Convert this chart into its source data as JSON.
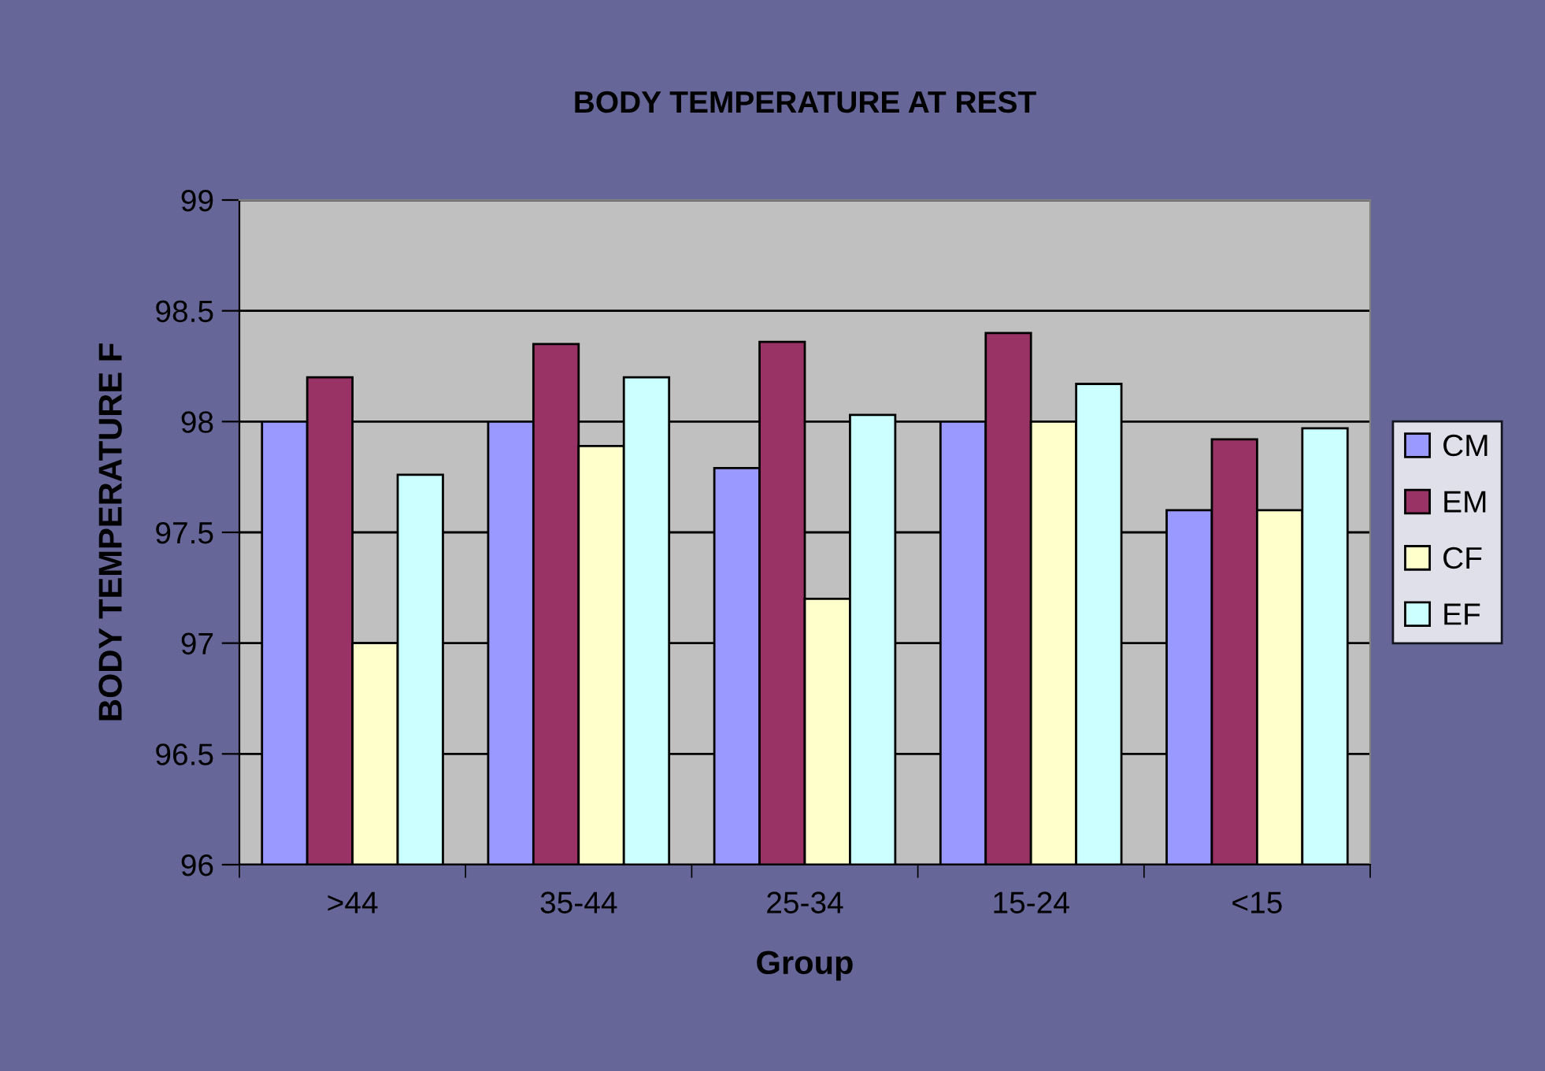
{
  "chart_data": {
    "type": "bar",
    "title": "BODY TEMPERATURE AT REST",
    "xlabel": "Group",
    "ylabel": "BODY TEMPERATURE F",
    "categories": [
      ">44",
      "35-44",
      "25-34",
      "15-24",
      "<15"
    ],
    "series": [
      {
        "name": "CM",
        "color": "#9999ff",
        "values": [
          98.0,
          98.0,
          97.79,
          98.0,
          97.6
        ]
      },
      {
        "name": "EM",
        "color": "#993366",
        "values": [
          98.2,
          98.35,
          98.36,
          98.4,
          97.92
        ]
      },
      {
        "name": "CF",
        "color": "#ffffcc",
        "values": [
          97.0,
          97.89,
          97.2,
          98.0,
          97.6
        ]
      },
      {
        "name": "EF",
        "color": "#ccffff",
        "values": [
          97.76,
          98.2,
          98.03,
          98.17,
          97.97
        ]
      }
    ],
    "ylim": [
      96,
      99
    ],
    "yticks": [
      96,
      96.5,
      97,
      97.5,
      98,
      98.5,
      99
    ],
    "grid": "y",
    "legend": "right"
  }
}
